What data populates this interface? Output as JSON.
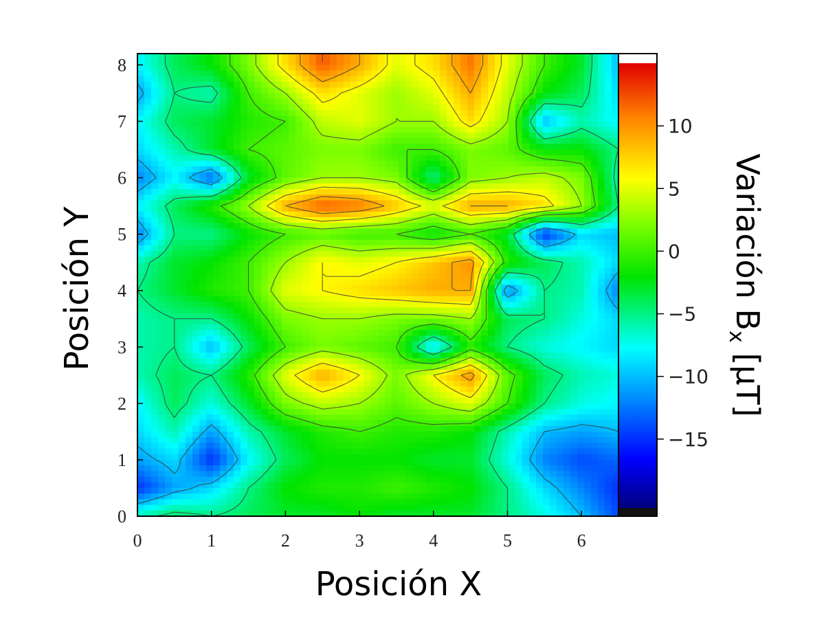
{
  "chart_data": {
    "type": "heatmap",
    "title": "",
    "xlabel": "Posición X",
    "ylabel": "Posición Y",
    "colorbar_label": "Variación B",
    "colorbar_label_sub": "x",
    "colorbar_label_unit": " [µT]",
    "xlim": [
      0,
      6.5
    ],
    "ylim": [
      0,
      8.2
    ],
    "zlim": [
      -20.5,
      15
    ],
    "x_ticks": [
      0,
      1,
      2,
      3,
      4,
      5,
      6
    ],
    "y_ticks": [
      0,
      1,
      2,
      3,
      4,
      5,
      6,
      7,
      8
    ],
    "colorbar_ticks": [
      10,
      5,
      0,
      -5,
      -10,
      -15
    ],
    "colorbar_tick_labels": [
      "10",
      "5",
      "0",
      "−5",
      "−10",
      "−15"
    ],
    "grid": false,
    "colormap": "jet",
    "contour_lines": true,
    "x": [
      0,
      0.5,
      1,
      1.5,
      2,
      2.5,
      3,
      3.5,
      4,
      4.5,
      5,
      5.5,
      6,
      6.5
    ],
    "y": [
      0,
      0.5,
      1,
      1.5,
      2,
      2.5,
      3,
      3.5,
      4,
      4.5,
      5,
      5.5,
      6,
      6.5,
      7,
      7.5,
      8
    ],
    "z": [
      [
        -6,
        -4,
        -5,
        -4,
        -3,
        -3,
        -2,
        -3,
        -3,
        -3,
        -5,
        -7,
        -10,
        -14
      ],
      [
        -15,
        -11,
        -9,
        -5,
        -2,
        -1,
        -1,
        0,
        -1,
        -2,
        -5,
        -9,
        -12,
        -15
      ],
      [
        -11,
        -9,
        -15,
        -8,
        -4,
        -2,
        -2,
        -2,
        -3,
        -3,
        -7,
        -12,
        -14,
        -13
      ],
      [
        -9,
        -6,
        -11,
        -6,
        -3,
        -1,
        0,
        -1,
        -1,
        -2,
        -6,
        -10,
        -11,
        -10
      ],
      [
        -8,
        -4,
        -7,
        -3,
        2,
        4,
        3,
        1,
        3,
        5,
        0,
        -5,
        -7,
        -8
      ],
      [
        -6,
        -4,
        -5,
        -1,
        5,
        9,
        6,
        2,
        6,
        10,
        1,
        -4,
        -6,
        -7
      ],
      [
        -6,
        -5,
        -10,
        -4,
        0,
        2,
        1,
        0,
        -9,
        -1,
        -5,
        -7,
        -8,
        -9
      ],
      [
        -6,
        -5,
        -5,
        -2,
        2,
        3,
        3,
        2,
        2,
        3,
        -4,
        -5,
        -7,
        -9
      ],
      [
        -5,
        -3,
        -1,
        0,
        5,
        6,
        7,
        8,
        9,
        9,
        -12,
        -5,
        -6,
        -12
      ],
      [
        -6,
        -3,
        -2,
        0,
        3,
        6,
        5,
        6,
        8,
        10,
        -1,
        -4,
        -6,
        -9
      ],
      [
        -12,
        -5,
        -5,
        -2,
        0,
        1,
        0,
        0,
        -2,
        0,
        -3,
        -15,
        -9,
        -10
      ],
      [
        -8,
        -4,
        -1,
        3,
        9,
        12,
        11,
        8,
        5,
        9,
        9,
        7,
        3,
        -5
      ],
      [
        -12,
        -8,
        -13,
        -3,
        1,
        3,
        3,
        2,
        -5,
        2,
        3,
        4,
        2,
        -6
      ],
      [
        -9,
        -6,
        -3,
        0,
        1,
        2,
        2,
        0,
        0,
        2,
        1,
        -2,
        -2,
        -5
      ],
      [
        -8,
        -4,
        -3,
        -1,
        0,
        4,
        5,
        3,
        3,
        7,
        3,
        -10,
        -6,
        -8
      ],
      [
        -11,
        -5,
        -6,
        0,
        3,
        7,
        5,
        3,
        5,
        9,
        4,
        -2,
        -4,
        -9
      ],
      [
        -8,
        -4,
        -2,
        2,
        7,
        12,
        9,
        5,
        7,
        11,
        5,
        0,
        -3,
        -10
      ]
    ]
  }
}
